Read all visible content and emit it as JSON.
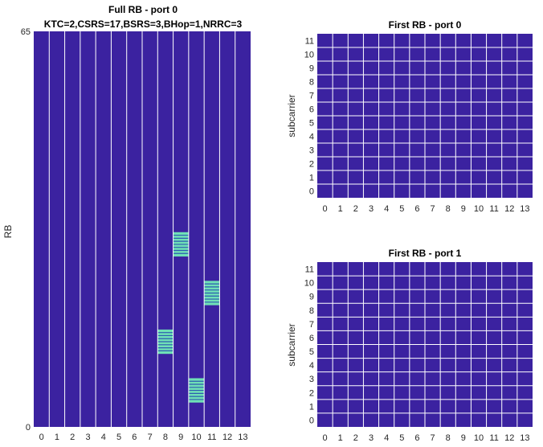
{
  "colors": {
    "background": "#3b22a0",
    "grid_line": "#ffffff",
    "highlight_bar": "#6fe0b6",
    "highlight_line": "#2d5bb0"
  },
  "chart_data": [
    {
      "type": "heatmap",
      "title": "Full RB - port 0",
      "subtitle": "KTC=2,CSRS=17,BSRS=3,BHop=1,NRRC=3",
      "xlabel": "",
      "ylabel": "RB",
      "x_ticks": [
        "0",
        "1",
        "2",
        "3",
        "4",
        "5",
        "6",
        "7",
        "8",
        "9",
        "10",
        "11",
        "12",
        "13"
      ],
      "y_ticks": [
        "0",
        "65"
      ],
      "xlim": [
        0,
        14
      ],
      "ylim": [
        0,
        65
      ],
      "grid": "vertical lines between symbols",
      "allocated_blocks": [
        {
          "symbol": 8,
          "rb_start": 12,
          "rb_end": 16
        },
        {
          "symbol": 9,
          "rb_start": 28,
          "rb_end": 32
        },
        {
          "symbol": 10,
          "rb_start": 4,
          "rb_end": 8
        },
        {
          "symbol": 11,
          "rb_start": 20,
          "rb_end": 24
        }
      ]
    },
    {
      "type": "heatmap",
      "title": "First RB - port 0",
      "xlabel": "",
      "ylabel": "subcarrier",
      "x_ticks": [
        "0",
        "1",
        "2",
        "3",
        "4",
        "5",
        "6",
        "7",
        "8",
        "9",
        "10",
        "11",
        "12",
        "13"
      ],
      "y_ticks": [
        "0",
        "1",
        "2",
        "3",
        "4",
        "5",
        "6",
        "7",
        "8",
        "9",
        "10",
        "11"
      ],
      "grid": "on",
      "allocated_cells": []
    },
    {
      "type": "heatmap",
      "title": "First RB - port 1",
      "xlabel": "",
      "ylabel": "subcarrier",
      "x_ticks": [
        "0",
        "1",
        "2",
        "3",
        "4",
        "5",
        "6",
        "7",
        "8",
        "9",
        "10",
        "11",
        "12",
        "13"
      ],
      "y_ticks": [
        "0",
        "1",
        "2",
        "3",
        "4",
        "5",
        "6",
        "7",
        "8",
        "9",
        "10",
        "11"
      ],
      "grid": "on",
      "allocated_cells": []
    }
  ]
}
